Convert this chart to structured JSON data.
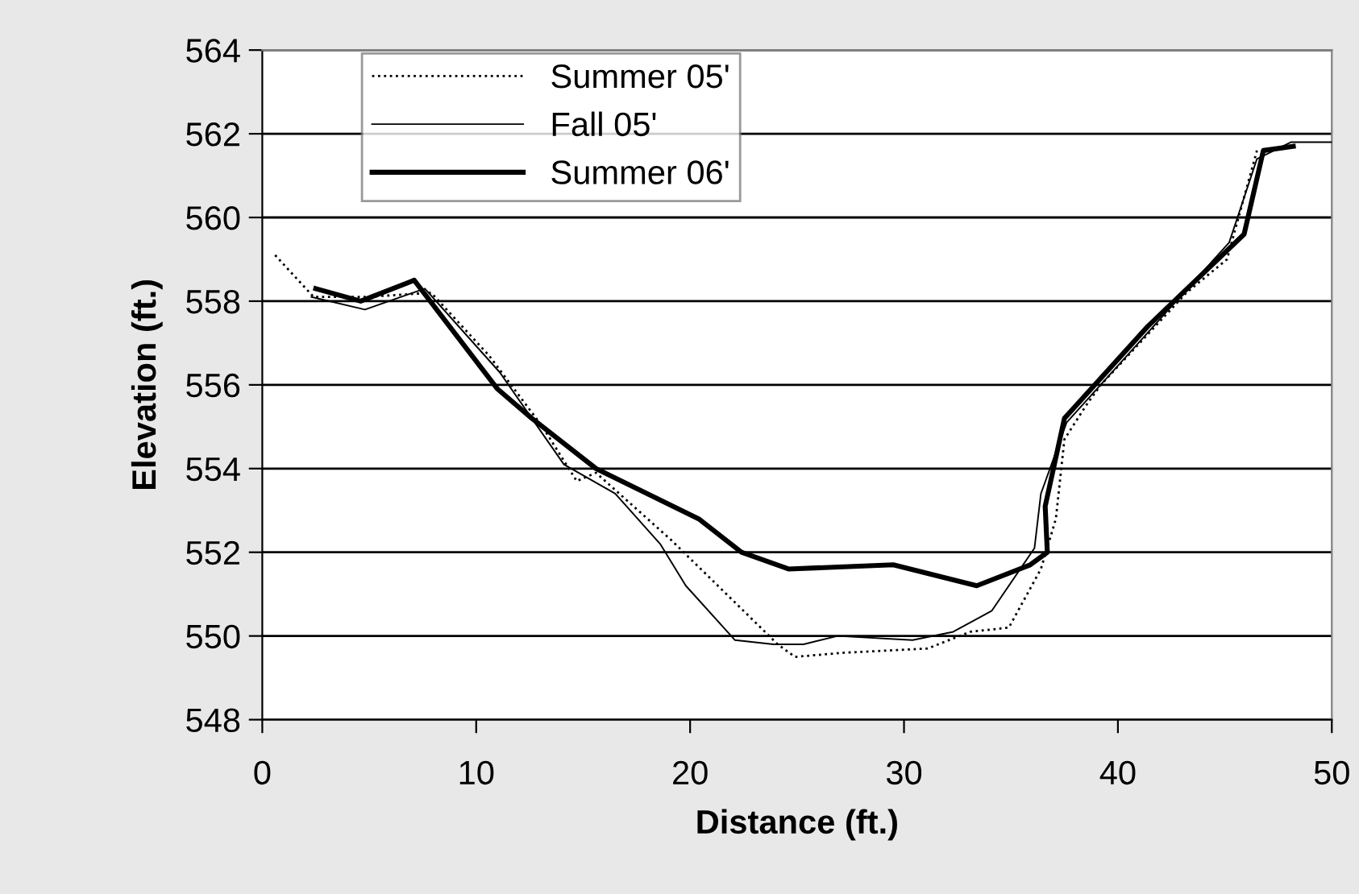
{
  "chart_data": {
    "type": "line",
    "xlabel": "Distance (ft.)",
    "ylabel": "Elevation (ft.)",
    "xlim": [
      0,
      50
    ],
    "xticks": [
      0,
      10,
      20,
      30,
      40,
      50
    ],
    "ylim": [
      548,
      564
    ],
    "yticks": [
      548,
      550,
      552,
      554,
      556,
      558,
      560,
      562,
      564
    ],
    "grid": "y",
    "legend": "top",
    "marker": "none",
    "series": [
      {
        "name": "Summer 05'",
        "color": "#000000",
        "line_style": "dotted",
        "x": [
          0.6,
          2.4,
          4.8,
          7.9,
          10.6,
          13.1,
          14.7,
          15.6,
          19.1,
          24.1,
          24.9,
          27.2,
          31.1,
          33.1,
          34.9,
          36.4,
          37.1,
          37.5,
          38.5,
          39.2,
          43.2,
          45.1,
          46.5
        ],
        "values": [
          559.1,
          558.1,
          558.1,
          558.2,
          556.7,
          555.0,
          553.7,
          553.9,
          552.3,
          549.8,
          549.5,
          549.6,
          549.7,
          550.1,
          550.2,
          551.6,
          552.8,
          554.7,
          555.5,
          556.0,
          558.2,
          559.0,
          561.6
        ]
      },
      {
        "name": "Fall 05'",
        "color": "#000000",
        "line_style": "solid",
        "x": [
          2.3,
          4.8,
          7.6,
          11.1,
          14.1,
          16.5,
          18.6,
          19.8,
          22.1,
          23.9,
          25.3,
          26.9,
          30.4,
          32.3,
          34.1,
          36.1,
          36.4,
          37.6,
          45.2,
          46.5,
          48.1,
          50.0
        ],
        "values": [
          558.1,
          557.8,
          558.3,
          556.3,
          554.1,
          553.4,
          552.2,
          551.2,
          549.9,
          549.8,
          549.8,
          550.0,
          549.9,
          550.1,
          550.6,
          552.1,
          553.4,
          555.1,
          559.4,
          561.4,
          561.8,
          561.8
        ]
      },
      {
        "name": "Summer 06'",
        "color": "#000000",
        "line_style": "solid",
        "x": [
          2.5,
          4.6,
          7.1,
          11.0,
          12.6,
          15.6,
          20.4,
          22.4,
          24.6,
          29.5,
          33.4,
          35.9,
          36.7,
          36.6,
          37.5,
          41.4,
          45.9,
          46.8,
          48.2
        ],
        "values": [
          558.3,
          558.0,
          558.5,
          555.9,
          555.2,
          554.0,
          552.8,
          552.0,
          551.6,
          551.7,
          551.2,
          551.7,
          552.0,
          553.1,
          555.2,
          557.4,
          559.6,
          561.6,
          561.7
        ]
      }
    ]
  }
}
